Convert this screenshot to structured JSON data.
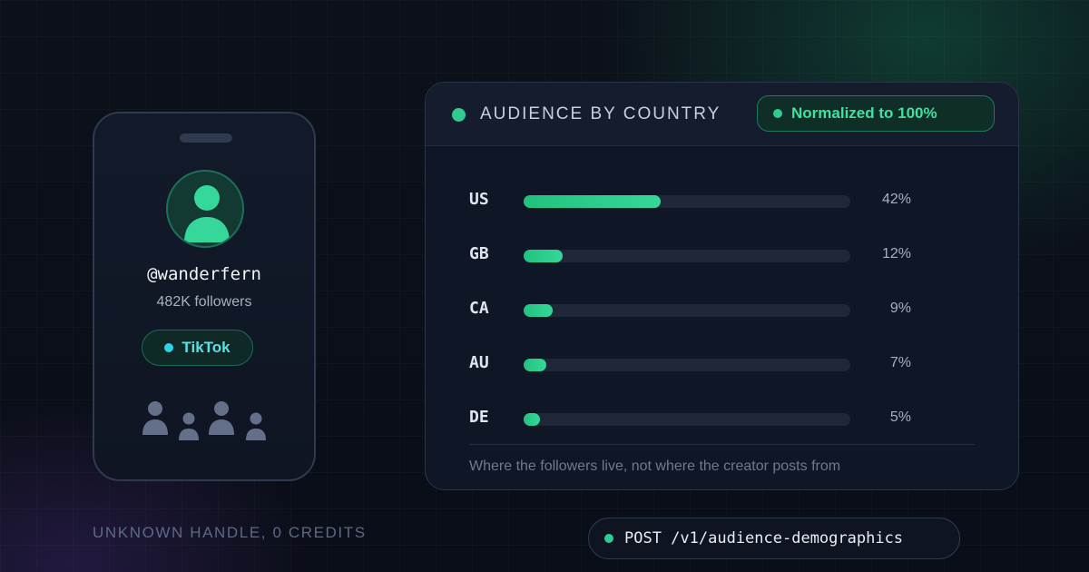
{
  "profile": {
    "handle": "@wanderfern",
    "followers": "482K followers",
    "platform": "TikTok",
    "avatar_icon": "user-icon",
    "audience_icon": "people-icon"
  },
  "caption": "UNKNOWN HANDLE, 0 CREDITS",
  "card": {
    "title": "AUDIENCE BY COUNTRY",
    "badge": "Normalized to 100%",
    "footnote": "Where the followers live, not where the creator posts from"
  },
  "chart_data": {
    "type": "bar",
    "categories": [
      "US",
      "GB",
      "CA",
      "AU",
      "DE"
    ],
    "values": [
      42,
      12,
      9,
      7,
      5
    ],
    "labels": [
      "42%",
      "12%",
      "9%",
      "7%",
      "5%"
    ],
    "xlim": [
      0,
      100
    ]
  },
  "endpoint": {
    "label": "POST /v1/audience-demographics"
  },
  "colors": {
    "accent": "#2ecc8f",
    "platform": "#2fd3e6",
    "background": "#0b0f1a"
  }
}
